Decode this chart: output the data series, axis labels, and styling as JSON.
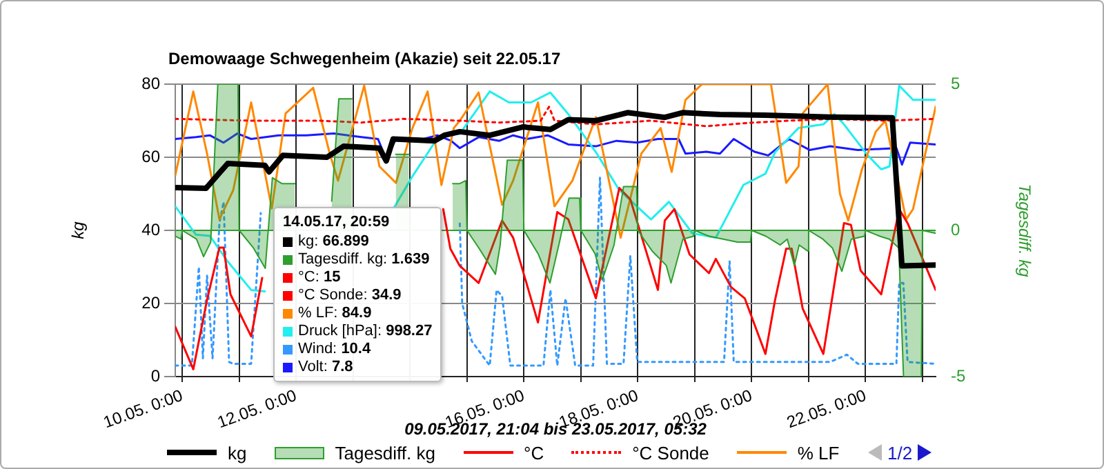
{
  "chart_data": {
    "type": "line",
    "title": "Demowaage Schwegenheim (Akazie) seit 22.05.17",
    "xlabel": "09.05.2017, 21:04 bis 23.05.2017, 05:32",
    "ylabel": "kg",
    "y2label": "Tagesdiff. kg",
    "xlim": [
      "2017-05-09T21:04",
      "2017-05-23T05:32"
    ],
    "xticks": [
      {
        "value": "2017-05-10T00:00",
        "label": "10.05. 0:00"
      },
      {
        "value": "2017-05-11T00:00",
        "label": null
      },
      {
        "value": "2017-05-12T00:00",
        "label": "12.05. 0:00"
      },
      {
        "value": "2017-05-13T00:00",
        "label": null
      },
      {
        "value": "2017-05-14T00:00",
        "label": null
      },
      {
        "value": "2017-05-15T00:00",
        "label": null
      },
      {
        "value": "2017-05-16T00:00",
        "label": "16.05. 0:00"
      },
      {
        "value": "2017-05-17T00:00",
        "label": null
      },
      {
        "value": "2017-05-18T00:00",
        "label": "18.05. 0:00"
      },
      {
        "value": "2017-05-19T00:00",
        "label": null
      },
      {
        "value": "2017-05-20T00:00",
        "label": "20.05. 0:00"
      },
      {
        "value": "2017-05-21T00:00",
        "label": null
      },
      {
        "value": "2017-05-22T00:00",
        "label": "22.05. 0:00"
      },
      {
        "value": "2017-05-23T00:00",
        "label": null
      }
    ],
    "ylim": [
      0,
      80
    ],
    "yticks": [
      0,
      20,
      40,
      60,
      80
    ],
    "y2lim": [
      -5,
      5
    ],
    "y2ticks": [
      -5,
      0,
      5
    ],
    "grid": true,
    "legend": "bottom",
    "marker": "none",
    "ref_lines": [
      {
        "axis": "y2",
        "value": 0,
        "color": "#2e9e2e"
      }
    ],
    "annotations": [
      "14.05.17, 20:59",
      "kg: 66.899",
      "Tagesdiff. kg: 1.639",
      "°C: 15",
      "°C Sonde: 34.9",
      "% LF: 84.9",
      "Druck [hPa]: 998.27",
      "Wind: 10.4",
      "Volt: 7.8",
      "1/2"
    ],
    "series": [
      {
        "name": "kg",
        "color": "#000000",
        "x": [
          "2017-05-09T21:04",
          "2017-05-10T10:00",
          "2017-05-10T19:10",
          "2017-05-11T10:50",
          "2017-05-11T12:36",
          "2017-05-11T18:25",
          "2017-05-12T13:00",
          "2017-05-12T20:00",
          "2017-05-13T11:06",
          "2017-05-13T14:00",
          "2017-05-13T16:54",
          "2017-05-14T10:20",
          "2017-05-14T14:25",
          "2017-05-14T20:59",
          "2017-05-15T09:36",
          "2017-05-15T23:32",
          "2017-05-16T11:10",
          "2017-05-16T18:43",
          "2017-05-17T06:20",
          "2017-05-17T19:42",
          "2017-05-18T11:23",
          "2017-05-18T18:56",
          "2017-05-19T10:38",
          "2017-05-20T05:48",
          "2017-05-21T09:07",
          "2017-05-22T11:16",
          "2017-05-22T15:20",
          "2017-05-23T05:32"
        ],
        "values": [
          51.7,
          51.5,
          58.3,
          57.8,
          56,
          60.5,
          60,
          63,
          62.5,
          59,
          65,
          64.5,
          66,
          67,
          66,
          68.3,
          67.6,
          70.3,
          70,
          72.2,
          70.9,
          72.2,
          71.7,
          71.5,
          71,
          70.8,
          30.3,
          30.5
        ]
      },
      {
        "name": "Tagesdiff. kg",
        "type": "area",
        "axis": "y2",
        "color": "#2e9e2e",
        "x": [
          "2017-05-09T21:04",
          "2017-05-09T23:30",
          "2017-05-10T00:00",
          "2017-05-10T06:00",
          "2017-05-10T09:00",
          "2017-05-10T12:00",
          "2017-05-10T15:00",
          "2017-05-10T23:30",
          "2017-05-11T00:00",
          "2017-05-11T06:00",
          "2017-05-11T11:00",
          "2017-05-11T14:00",
          "2017-05-11T18:00",
          "2017-05-11T23:30",
          "2017-05-12T00:00",
          "2017-05-12T06:00",
          "2017-05-12T11:00",
          "2017-05-12T15:00",
          "2017-05-12T18:00",
          "2017-05-12T23:30",
          "2017-05-13T00:00",
          "2017-05-13T06:00",
          "2017-05-13T11:00",
          "2017-05-13T15:00",
          "2017-05-13T18:00",
          "2017-05-13T23:30",
          "2017-05-14T00:00",
          "2017-05-14T06:00",
          "2017-05-14T11:00",
          "2017-05-14T15:00",
          "2017-05-14T18:00",
          "2017-05-14T20:59",
          "2017-05-14T23:30",
          "2017-05-15T00:00",
          "2017-05-15T05:00",
          "2017-05-15T12:00",
          "2017-05-15T14:00",
          "2017-05-15T17:00",
          "2017-05-15T23:30",
          "2017-05-16T00:00",
          "2017-05-16T06:00",
          "2017-05-16T11:00",
          "2017-05-16T15:00",
          "2017-05-16T19:00",
          "2017-05-16T23:30",
          "2017-05-17T00:00",
          "2017-05-17T06:00",
          "2017-05-17T09:00",
          "2017-05-17T14:00",
          "2017-05-17T18:00",
          "2017-05-17T23:30",
          "2017-05-18T00:00",
          "2017-05-18T06:00",
          "2017-05-18T12:00",
          "2017-05-18T14:00",
          "2017-05-18T19:00",
          "2017-05-18T23:30",
          "2017-05-19T00:00",
          "2017-05-19T06:00",
          "2017-05-19T12:00",
          "2017-05-19T18:00",
          "2017-05-19T23:30",
          "2017-05-20T00:00",
          "2017-05-20T06:00",
          "2017-05-20T12:00",
          "2017-05-20T15:00",
          "2017-05-20T18:00",
          "2017-05-20T20:00",
          "2017-05-20T23:30",
          "2017-05-21T00:00",
          "2017-05-21T06:00",
          "2017-05-21T10:00",
          "2017-05-21T14:00",
          "2017-05-21T18:00",
          "2017-05-21T23:30",
          "2017-05-22T00:00",
          "2017-05-22T06:00",
          "2017-05-22T10:00",
          "2017-05-22T14:00",
          "2017-05-22T16:00",
          "2017-05-22T23:30",
          "2017-05-23T00:00",
          "2017-05-23T05:32"
        ],
        "values": [
          -0.2,
          -0.3,
          0,
          -0.3,
          -0.9,
          -0.4,
          5,
          5,
          0,
          -0.6,
          -1.3,
          1.8,
          1.6,
          1.6,
          null,
          null,
          null,
          1,
          4.5,
          4.5,
          null,
          null,
          null,
          null,
          2.6,
          2.6,
          null,
          null,
          null,
          null,
          1.6,
          1.6,
          1.7,
          0,
          -0.6,
          -1.5,
          -0.5,
          2.4,
          2.4,
          0,
          -0.8,
          -1.8,
          -0.4,
          1.1,
          1.1,
          0,
          -0.8,
          -1.7,
          -0.5,
          1.5,
          1.5,
          0,
          -0.7,
          -1.2,
          -1.8,
          -0.3,
          -0.2,
          0,
          -0.2,
          -0.3,
          -0.4,
          -0.4,
          0,
          -0.2,
          -0.5,
          -0.3,
          -1.2,
          -0.5,
          -0.7,
          0,
          -0.3,
          -0.6,
          -1.4,
          -0.3,
          -0.2,
          0,
          -0.2,
          -0.3,
          -0.6,
          -5,
          -5,
          0,
          -0.1
        ]
      },
      {
        "name": "°C",
        "color": "#ff0000",
        "x": [
          "2017-05-09T21:04",
          "2017-05-10T04:40",
          "2017-05-10T10:28",
          "2017-05-10T15:41",
          "2017-05-10T17:26",
          "2017-05-10T20:20",
          "2017-05-11T05:03",
          "2017-05-11T09:42",
          "2017-05-12T12:00",
          "2017-05-14T14:00",
          "2017-05-14T17:00",
          "2017-05-14T20:59",
          "2017-05-15T04:56",
          "2017-05-15T14:49",
          "2017-05-15T19:28",
          "2017-05-16T05:56",
          "2017-05-16T14:04",
          "2017-05-16T18:43",
          "2017-05-17T06:20",
          "2017-05-17T16:13",
          "2017-05-17T20:51",
          "2017-05-18T08:29",
          "2017-05-18T11:23",
          "2017-05-18T15:27",
          "2017-05-18T21:50",
          "2017-05-19T06:00",
          "2017-05-19T08:54",
          "2017-05-19T15:17",
          "2017-05-19T21:05",
          "2017-05-20T05:48",
          "2017-05-20T09:52",
          "2017-05-20T14:32",
          "2017-05-20T16:52",
          "2017-05-20T21:30",
          "2017-05-21T06:12",
          "2017-05-21T14:55",
          "2017-05-21T17:50",
          "2017-05-21T21:54",
          "2017-05-22T06:36",
          "2017-05-22T13:00",
          "2017-05-22T14:10",
          "2017-05-22T17:42",
          "2017-05-23T05:32"
        ],
        "values": [
          13.6,
          2,
          21,
          35.3,
          35.3,
          22.5,
          11,
          27,
          null,
          45.8,
          35,
          30.3,
          25.6,
          42.7,
          38,
          14.8,
          45,
          43,
          21.4,
          51.6,
          48.5,
          23.7,
          42.7,
          45.8,
          33.4,
          28.3,
          32.2,
          24.5,
          21.4,
          6.2,
          21,
          35,
          35,
          18.6,
          6.2,
          42,
          41.5,
          29,
          22.5,
          42,
          45.8,
          42,
          23.7
        ]
      },
      {
        "name": "°C Sonde",
        "color": "#ff0000",
        "line_style": "dotted",
        "x": [
          "2017-05-09T21:04",
          "2017-05-11T05:00",
          "2017-05-12T10:00",
          "2017-05-13T03:30",
          "2017-05-13T21:00",
          "2017-05-14T20:59",
          "2017-05-15T13:40",
          "2017-05-16T07:05",
          "2017-05-16T10:35",
          "2017-05-16T12:54",
          "2017-05-17T06:20",
          "2017-05-18T05:35",
          "2017-05-19T04:50",
          "2017-05-20T01:10",
          "2017-05-20T15:40",
          "2017-05-21T09:07",
          "2017-05-22T08:21",
          "2017-05-23T05:32"
        ],
        "values": [
          70.5,
          70,
          70,
          69.5,
          70.5,
          70,
          69.5,
          70,
          73.8,
          70,
          69,
          70,
          68.5,
          69.5,
          70,
          70.5,
          70,
          70.5
        ]
      },
      {
        "name": "% LF",
        "color": "#ff8800",
        "x": [
          "2017-05-09T21:04",
          "2017-05-10T04:40",
          "2017-05-10T10:28",
          "2017-05-10T15:41",
          "2017-05-10T21:30",
          "2017-05-11T05:03",
          "2017-05-11T13:46",
          "2017-05-11T19:35",
          "2017-05-12T07:12",
          "2017-05-12T14:10",
          "2017-05-12T17:40",
          "2017-05-13T04:42",
          "2017-05-13T11:06",
          "2017-05-13T18:04",
          "2017-05-14T01:03",
          "2017-05-14T07:26",
          "2017-05-14T13:15",
          "2017-05-14T18:28",
          "2017-05-14T20:59",
          "2017-05-15T04:56",
          "2017-05-15T14:49",
          "2017-05-15T19:28",
          "2017-05-16T05:56",
          "2017-05-16T12:54",
          "2017-05-16T20:27",
          "2017-05-17T06:20",
          "2017-05-17T16:47",
          "2017-05-18T01:30",
          "2017-05-18T09:38",
          "2017-05-18T14:17",
          "2017-05-18T20:06",
          "2017-05-19T03:04",
          "2017-05-20T08:08",
          "2017-05-20T14:32",
          "2017-05-20T19:45",
          "2017-05-20T21:30",
          "2017-05-21T08:00",
          "2017-05-21T13:13",
          "2017-05-21T16:42",
          "2017-05-21T22:29",
          "2017-05-22T04:18",
          "2017-05-22T08:21",
          "2017-05-22T17:06",
          "2017-05-22T20:00",
          "2017-05-23T05:32"
        ],
        "values": [
          55,
          78,
          61,
          43,
          51,
          75,
          46,
          72,
          79,
          61,
          53.6,
          79.6,
          57.5,
          53,
          68,
          78,
          52.4,
          68,
          70,
          77.7,
          47,
          53.6,
          75,
          46.6,
          53.6,
          71,
          38,
          61,
          68,
          56,
          75.7,
          80,
          80,
          53,
          57.5,
          72,
          80,
          50,
          42.7,
          56.7,
          67,
          70,
          43,
          45.8,
          73.8
        ]
      },
      {
        "color": "#22eeee",
        "x": [
          "2017-05-09T21:04",
          "2017-05-10T05:49",
          "2017-05-10T11:37",
          "2017-05-10T19:10",
          "2017-05-11T05:03",
          "2017-05-11T10:52",
          "2017-05-12T12:00",
          "2017-05-13T16:54",
          "2017-05-14T01:03",
          "2017-05-14T10:20",
          "2017-05-14T14:25",
          "2017-05-14T20:59",
          "2017-05-15T09:36",
          "2017-05-15T17:43",
          "2017-05-16T03:00",
          "2017-05-16T11:10",
          "2017-05-16T18:43",
          "2017-05-17T06:20",
          "2017-05-17T16:13",
          "2017-05-18T05:35",
          "2017-05-18T13:08",
          "2017-05-18T23:00",
          "2017-05-19T08:54",
          "2017-05-19T20:30",
          "2017-05-20T05:48",
          "2017-05-20T09:52",
          "2017-05-20T19:45",
          "2017-05-21T06:12",
          "2017-05-21T10:52",
          "2017-05-21T14:55",
          "2017-05-22T00:48",
          "2017-05-22T06:36",
          "2017-05-22T10:06",
          "2017-05-22T14:10",
          "2017-05-22T20:00",
          "2017-05-23T05:32"
        ],
        "values": [
          46.6,
          38.8,
          38.5,
          31.5,
          23.7,
          23.3,
          null,
          45.8,
          54.8,
          64,
          66.4,
          66.4,
          78,
          75,
          75,
          77.7,
          71.8,
          61.4,
          51,
          43,
          47.8,
          39.2,
          38,
          52.4,
          55.5,
          61.4,
          68,
          69,
          71.8,
          69,
          60.6,
          56.7,
          57.5,
          79.6,
          75.7,
          75.7
        ]
      },
      {
        "color": "#3399ff",
        "line_style": "dotted",
        "x": [
          "2017-05-09T21:04",
          "2017-05-10T04:04",
          "2017-05-10T07:00",
          "2017-05-10T08:43",
          "2017-05-10T10:28",
          "2017-05-10T12:47",
          "2017-05-10T15:41",
          "2017-05-10T17:26",
          "2017-05-10T19:45",
          "2017-05-10T21:30",
          "2017-05-11T05:03",
          "2017-05-11T09:07",
          "2017-05-11T10:52",
          "2017-05-12T12:00",
          "2017-05-14T17:00",
          "2017-05-14T20:59",
          "2017-05-14T22:00",
          "2017-05-15T02:02",
          "2017-05-15T09:36",
          "2017-05-15T12:30",
          "2017-05-15T14:49",
          "2017-05-15T18:18",
          "2017-05-16T08:15",
          "2017-05-16T11:10",
          "2017-05-16T14:04",
          "2017-05-16T17:33",
          "2017-05-16T21:37",
          "2017-05-17T05:10",
          "2017-05-17T08:04",
          "2017-05-17T10:59",
          "2017-05-17T18:00",
          "2017-05-17T20:51",
          "2017-05-17T23:46",
          "2017-05-19T12:22",
          "2017-05-19T14:42",
          "2017-05-19T16:26",
          "2017-05-21T09:07",
          "2017-05-21T16:06",
          "2017-05-21T20:44",
          "2017-05-22T13:00",
          "2017-05-22T14:10",
          "2017-05-22T15:55",
          "2017-05-22T17:42",
          "2017-05-23T05:32"
        ],
        "values": [
          3,
          3,
          30,
          5,
          27.6,
          5,
          42,
          47.8,
          4,
          3.5,
          3.5,
          44.7,
          null,
          null,
          null,
          41.9,
          20,
          9.7,
          3,
          23.7,
          22,
          3,
          3,
          23.7,
          3,
          21.4,
          3,
          3,
          54.4,
          3.5,
          3.5,
          33,
          4,
          4,
          31.5,
          4,
          4,
          6,
          3.5,
          3.5,
          25.6,
          25.6,
          4,
          3.5
        ]
      },
      {
        "color": "#1a1aff",
        "x": [
          "2017-05-09T21:04",
          "2017-05-10T05:49",
          "2017-05-10T11:37",
          "2017-05-10T17:26",
          "2017-05-10T23:15",
          "2017-05-11T05:03",
          "2017-05-11T16:40",
          "2017-05-12T04:18",
          "2017-05-12T15:55",
          "2017-05-13T03:33",
          "2017-05-13T10:30",
          "2017-05-13T14:00",
          "2017-05-13T18:04",
          "2017-05-14T02:47",
          "2017-05-14T11:30",
          "2017-05-14T17:19",
          "2017-05-14T20:59",
          "2017-05-15T04:56",
          "2017-05-15T13:40",
          "2017-05-15T19:28",
          "2017-05-16T01:16",
          "2017-05-16T10:00",
          "2017-05-16T18:43",
          "2017-05-17T06:20",
          "2017-05-17T15:02",
          "2017-05-17T23:46",
          "2017-05-18T08:29",
          "2017-05-18T17:12",
          "2017-05-18T20:06",
          "2017-05-19T04:50",
          "2017-05-19T10:38",
          "2017-05-19T16:26",
          "2017-05-20T01:10",
          "2017-05-20T06:58",
          "2017-05-20T15:40",
          "2017-05-21T00:24",
          "2017-05-21T09:07",
          "2017-05-21T20:44",
          "2017-05-22T13:00",
          "2017-05-22T15:20",
          "2017-05-22T18:49",
          "2017-05-23T05:32"
        ],
        "values": [
          65,
          65.5,
          66,
          64,
          66.5,
          65,
          66,
          66,
          66.5,
          65.5,
          65,
          59.4,
          65,
          64.5,
          66,
          64.5,
          62.5,
          65.5,
          64.5,
          66,
          65,
          66,
          63.5,
          63,
          64.5,
          64,
          65,
          65,
          61,
          61.5,
          61,
          65,
          61.5,
          60.5,
          65,
          62,
          63,
          62,
          62.5,
          58,
          64,
          63.5
        ]
      }
    ]
  }
}
